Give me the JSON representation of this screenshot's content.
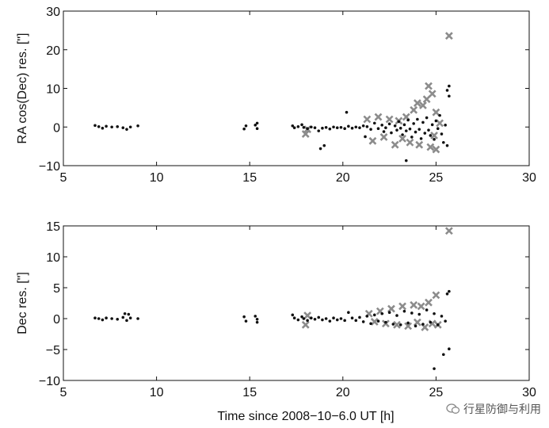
{
  "chart_data": [
    {
      "type": "scatter",
      "ylabel": "RA cos(Dec) res. [\"]",
      "xlabel": "",
      "xlim": [
        5,
        30
      ],
      "ylim": [
        -10,
        30
      ],
      "xticks": [
        5,
        10,
        15,
        20,
        25,
        30
      ],
      "yticks": [
        -10,
        0,
        10,
        20,
        30
      ],
      "grid": false,
      "series": [
        {
          "marker": "dot",
          "color": "#111111",
          "points": [
            [
              6.7,
              0.4
            ],
            [
              6.9,
              0.1
            ],
            [
              7.1,
              -0.3
            ],
            [
              7.3,
              0.2
            ],
            [
              7.6,
              0.0
            ],
            [
              7.9,
              0.1
            ],
            [
              8.2,
              -0.2
            ],
            [
              8.4,
              -0.6
            ],
            [
              8.6,
              0.0
            ],
            [
              9.0,
              0.3
            ],
            [
              14.7,
              -0.5
            ],
            [
              14.8,
              0.3
            ],
            [
              15.3,
              0.5
            ],
            [
              15.4,
              -0.4
            ],
            [
              15.4,
              1.0
            ],
            [
              17.3,
              0.3
            ],
            [
              17.4,
              -0.2
            ],
            [
              17.6,
              0.1
            ],
            [
              17.8,
              0.6
            ],
            [
              17.9,
              -0.1
            ],
            [
              18.1,
              -0.4
            ],
            [
              18.3,
              0.0
            ],
            [
              18.5,
              -0.2
            ],
            [
              18.7,
              -1.0
            ],
            [
              18.9,
              -0.3
            ],
            [
              19.1,
              -0.1
            ],
            [
              19.3,
              -0.5
            ],
            [
              19.5,
              0.0
            ],
            [
              19.7,
              -0.2
            ],
            [
              19.9,
              -0.1
            ],
            [
              20.1,
              -0.4
            ],
            [
              20.2,
              3.8
            ],
            [
              20.3,
              0.2
            ],
            [
              20.5,
              -0.3
            ],
            [
              20.7,
              0.0
            ],
            [
              20.9,
              -0.2
            ],
            [
              21.1,
              0.3
            ],
            [
              21.2,
              -2.5
            ],
            [
              21.3,
              0.1
            ],
            [
              21.5,
              -0.6
            ],
            [
              21.7,
              1.0
            ],
            [
              21.9,
              -0.4
            ],
            [
              22.1,
              0.5
            ],
            [
              22.2,
              -1.2
            ],
            [
              22.3,
              -0.2
            ],
            [
              22.5,
              0.8
            ],
            [
              22.6,
              -1.5
            ],
            [
              22.8,
              0.3
            ],
            [
              22.9,
              -0.8
            ],
            [
              23.0,
              1.4
            ],
            [
              23.1,
              -0.3
            ],
            [
              23.2,
              -2.0
            ],
            [
              23.3,
              0.6
            ],
            [
              23.4,
              -1.0
            ],
            [
              23.5,
              1.8
            ],
            [
              23.6,
              -0.5
            ],
            [
              23.7,
              -2.6
            ],
            [
              23.8,
              0.9
            ],
            [
              23.9,
              -1.3
            ],
            [
              24.0,
              2.0
            ],
            [
              24.1,
              -0.6
            ],
            [
              24.2,
              -3.0
            ],
            [
              24.3,
              1.2
            ],
            [
              24.4,
              -1.6
            ],
            [
              24.5,
              2.4
            ],
            [
              24.6,
              -0.8
            ],
            [
              24.7,
              -2.2
            ],
            [
              24.8,
              0.6
            ],
            [
              24.9,
              -3.2
            ],
            [
              25.0,
              1.6
            ],
            [
              25.1,
              -0.4
            ],
            [
              25.2,
              3.0
            ],
            [
              25.3,
              -1.8
            ],
            [
              25.4,
              -4.0
            ],
            [
              25.5,
              0.5
            ],
            [
              25.6,
              9.5
            ],
            [
              25.7,
              10.6
            ],
            [
              25.6,
              -4.8
            ],
            [
              25.7,
              8.0
            ],
            [
              19.0,
              -4.8
            ],
            [
              18.8,
              -5.6
            ],
            [
              23.4,
              -8.7
            ]
          ]
        },
        {
          "marker": "cross",
          "color": "#8c8c8c",
          "points": [
            [
              18.0,
              -1.8
            ],
            [
              18.1,
              -0.6
            ],
            [
              21.3,
              2.0
            ],
            [
              21.6,
              -3.6
            ],
            [
              21.9,
              2.6
            ],
            [
              22.2,
              -2.6
            ],
            [
              22.5,
              2.0
            ],
            [
              22.8,
              -4.6
            ],
            [
              23.0,
              1.6
            ],
            [
              23.2,
              -3.0
            ],
            [
              23.4,
              2.6
            ],
            [
              23.6,
              -4.0
            ],
            [
              23.8,
              4.4
            ],
            [
              24.0,
              6.2
            ],
            [
              24.1,
              -4.6
            ],
            [
              24.3,
              5.6
            ],
            [
              24.5,
              7.2
            ],
            [
              24.6,
              10.6
            ],
            [
              24.7,
              -5.2
            ],
            [
              24.8,
              8.6
            ],
            [
              24.9,
              -2.2
            ],
            [
              25.0,
              3.8
            ],
            [
              25.0,
              -5.8
            ],
            [
              25.2,
              1.0
            ],
            [
              25.7,
              23.6
            ]
          ]
        }
      ]
    },
    {
      "type": "scatter",
      "ylabel": "Dec res. [\"]",
      "xlabel": "Time since 2008−10−6.0 UT [h]",
      "xlim": [
        5,
        30
      ],
      "ylim": [
        -10,
        15
      ],
      "xticks": [
        5,
        10,
        15,
        20,
        25,
        30
      ],
      "yticks": [
        -10,
        -5,
        0,
        5,
        10,
        15
      ],
      "grid": false,
      "series": [
        {
          "marker": "dot",
          "color": "#111111",
          "points": [
            [
              6.7,
              0.1
            ],
            [
              6.9,
              0.0
            ],
            [
              7.1,
              -0.2
            ],
            [
              7.3,
              0.1
            ],
            [
              7.6,
              0.0
            ],
            [
              7.9,
              -0.1
            ],
            [
              8.2,
              0.2
            ],
            [
              8.3,
              0.8
            ],
            [
              8.4,
              -0.3
            ],
            [
              8.5,
              0.7
            ],
            [
              8.6,
              0.1
            ],
            [
              9.0,
              0.0
            ],
            [
              14.7,
              0.3
            ],
            [
              14.8,
              -0.4
            ],
            [
              15.3,
              0.4
            ],
            [
              15.4,
              -0.6
            ],
            [
              15.4,
              -0.1
            ],
            [
              17.3,
              0.6
            ],
            [
              17.4,
              0.1
            ],
            [
              17.6,
              -0.2
            ],
            [
              17.8,
              0.3
            ],
            [
              17.9,
              0.0
            ],
            [
              18.1,
              -0.3
            ],
            [
              18.3,
              0.1
            ],
            [
              18.5,
              -0.1
            ],
            [
              18.7,
              0.2
            ],
            [
              18.9,
              -0.2
            ],
            [
              19.1,
              0.0
            ],
            [
              19.3,
              -0.4
            ],
            [
              19.5,
              0.1
            ],
            [
              19.7,
              -0.2
            ],
            [
              19.9,
              0.0
            ],
            [
              20.1,
              -0.3
            ],
            [
              20.3,
              1.0
            ],
            [
              20.5,
              0.1
            ],
            [
              20.7,
              -0.3
            ],
            [
              20.9,
              0.2
            ],
            [
              21.1,
              -0.5
            ],
            [
              21.3,
              0.4
            ],
            [
              21.5,
              -0.8
            ],
            [
              21.7,
              0.6
            ],
            [
              21.9,
              -0.4
            ],
            [
              22.1,
              0.8
            ],
            [
              22.3,
              -0.6
            ],
            [
              22.5,
              1.0
            ],
            [
              22.7,
              -0.9
            ],
            [
              22.9,
              0.5
            ],
            [
              23.1,
              -1.0
            ],
            [
              23.3,
              1.2
            ],
            [
              23.5,
              -0.7
            ],
            [
              23.7,
              0.9
            ],
            [
              23.9,
              -1.2
            ],
            [
              24.1,
              0.7
            ],
            [
              24.3,
              -0.9
            ],
            [
              24.5,
              1.4
            ],
            [
              24.7,
              -0.6
            ],
            [
              24.9,
              0.8
            ],
            [
              25.1,
              -1.0
            ],
            [
              25.3,
              0.4
            ],
            [
              25.5,
              -0.4
            ],
            [
              25.6,
              4.0
            ],
            [
              25.7,
              4.4
            ],
            [
              25.4,
              -5.8
            ],
            [
              25.7,
              -4.9
            ],
            [
              24.9,
              -8.1
            ]
          ]
        },
        {
          "marker": "cross",
          "color": "#8c8c8c",
          "points": [
            [
              18.0,
              -1.0
            ],
            [
              18.1,
              0.5
            ],
            [
              21.4,
              0.8
            ],
            [
              21.7,
              -0.5
            ],
            [
              22.0,
              1.2
            ],
            [
              22.3,
              -0.8
            ],
            [
              22.6,
              1.6
            ],
            [
              22.9,
              -1.0
            ],
            [
              23.2,
              2.0
            ],
            [
              23.5,
              -1.2
            ],
            [
              23.8,
              2.2
            ],
            [
              24.0,
              -0.6
            ],
            [
              24.2,
              2.0
            ],
            [
              24.4,
              -1.4
            ],
            [
              24.6,
              2.6
            ],
            [
              24.8,
              -0.8
            ],
            [
              25.0,
              3.8
            ],
            [
              25.1,
              -1.0
            ],
            [
              25.7,
              14.2
            ]
          ]
        }
      ]
    }
  ],
  "watermark": {
    "text": "行星防御与利用",
    "icon": "wechat-icon"
  }
}
